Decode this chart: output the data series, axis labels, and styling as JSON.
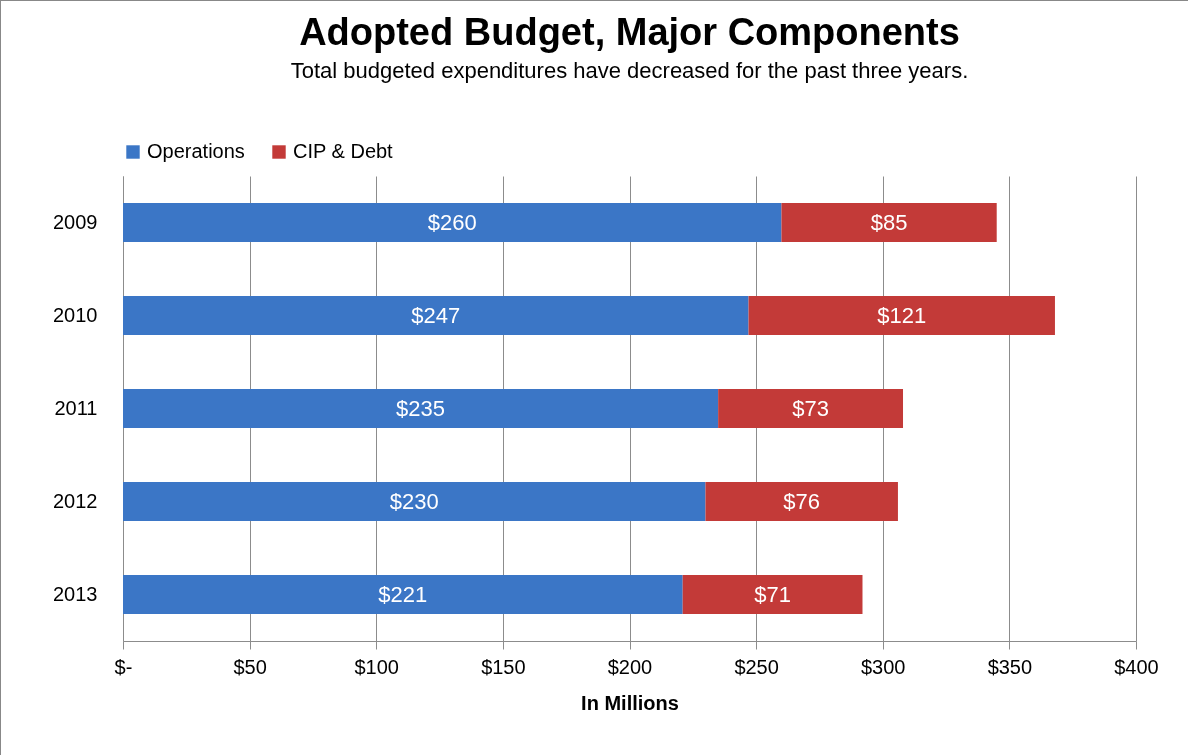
{
  "chart_data": {
    "type": "bar",
    "title": "Adopted Budget, Major Components",
    "subtitle": "Total budgeted expenditures have decreased for the past three years.",
    "xlabel": "In Millions",
    "orientation": "horizontal",
    "stacked": true,
    "categories": [
      "2009",
      "2010",
      "2011",
      "2012",
      "2013"
    ],
    "series": [
      {
        "name": "Operations",
        "color": "#3b76c6",
        "values": [
          260,
          247,
          235,
          230,
          221
        ],
        "value_labels": [
          "$260",
          "$247",
          "$235",
          "$230",
          "$221"
        ]
      },
      {
        "name": "CIP & Debt",
        "color": "#c33a38",
        "values": [
          85,
          121,
          73,
          76,
          71
        ],
        "value_labels": [
          "$85",
          "$121",
          "$73",
          "$76",
          "$71"
        ]
      }
    ],
    "xlim": [
      0,
      400
    ],
    "xticks": [
      {
        "value": 0,
        "label": "$-"
      },
      {
        "value": 50,
        "label": "$50"
      },
      {
        "value": 100,
        "label": "$100"
      },
      {
        "value": 150,
        "label": "$150"
      },
      {
        "value": 200,
        "label": "$200"
      },
      {
        "value": 250,
        "label": "$250"
      },
      {
        "value": 300,
        "label": "$300"
      },
      {
        "value": 350,
        "label": "$350"
      },
      {
        "value": 400,
        "label": "$400"
      }
    ],
    "grid": "x",
    "legend": "top"
  }
}
